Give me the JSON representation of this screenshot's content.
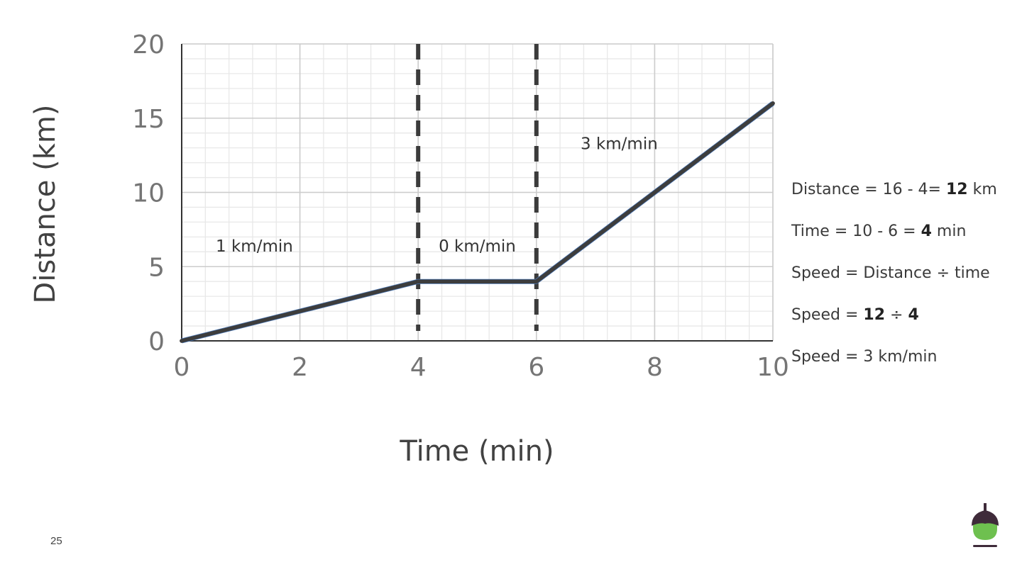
{
  "page_number": "25",
  "chart_data": {
    "type": "line",
    "xlabel": "Time (min)",
    "ylabel": "Distance (km)",
    "xlim": [
      0,
      10
    ],
    "ylim": [
      0,
      20
    ],
    "x_ticks": [
      "0",
      "2",
      "4",
      "6",
      "8",
      "10"
    ],
    "y_ticks": [
      "0",
      "5",
      "10",
      "15",
      "20"
    ],
    "grid": true,
    "x_minor_step": 0.4,
    "y_minor_step": 1,
    "series": [
      {
        "x": [
          0,
          4,
          6,
          10
        ],
        "y": [
          0,
          4,
          4,
          16
        ],
        "color": "#3d3d3d"
      }
    ],
    "reference_lines": [
      {
        "x": 4
      },
      {
        "x": 6
      }
    ],
    "annotations": [
      {
        "text": "1 km/min",
        "x": 1.23,
        "y": 6.4
      },
      {
        "text": "0 km/min",
        "x": 5.0,
        "y": 6.4
      },
      {
        "text": "3 km/min",
        "x": 7.4,
        "y": 13.3
      }
    ]
  },
  "calculation": [
    {
      "parts": [
        {
          "text": "Distance = 16 - 4= "
        },
        {
          "text": "12",
          "bold": true
        },
        {
          "text": " km"
        }
      ]
    },
    {
      "parts": [
        {
          "text": "Time = 10 - 6 = "
        },
        {
          "text": "4",
          "bold": true
        },
        {
          "text": " min"
        }
      ]
    },
    {
      "parts": [
        {
          "text": "Speed = Distance ÷ time"
        }
      ]
    },
    {
      "parts": [
        {
          "text": "Speed = "
        },
        {
          "text": "12",
          "bold": true
        },
        {
          "text": " ÷ "
        },
        {
          "text": "4",
          "bold": true
        }
      ]
    },
    {
      "parts": [
        {
          "text": "Speed = 3 km/min"
        }
      ]
    }
  ],
  "logo": {
    "icon": "acorn-icon",
    "cap_color": "#3f2b3a",
    "body_color": "#6ec04f"
  }
}
